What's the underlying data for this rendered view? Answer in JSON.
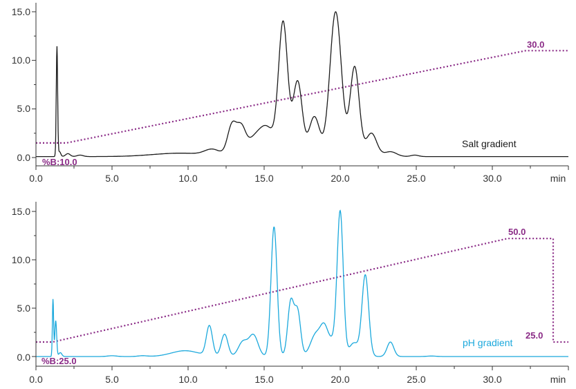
{
  "colors": {
    "salt_trace": "#1a1a1a",
    "ph_trace": "#1aa8dc",
    "gradient": "#8a2a86",
    "axis": "#333333"
  },
  "chart_data": [
    {
      "type": "line",
      "x_ticks": [
        "0.0",
        "5.0",
        "10.0",
        "15.0",
        "20.0",
        "25.0",
        "30.0"
      ],
      "x_unit_label": "min",
      "y_ticks": [
        "0.0",
        "5.0",
        "10.0",
        "15.0"
      ],
      "xlim": [
        0,
        35
      ],
      "ylim": [
        -0.3,
        15.8
      ],
      "trace_label": "Salt gradient",
      "gradient_start_label": "%B:10.0",
      "gradient_end_label": "30.0",
      "trace": {
        "baseline": 0.1,
        "peaks": [
          [
            1.38,
            11.3,
            0.045
          ],
          [
            1.55,
            0.5,
            0.08
          ],
          [
            2.1,
            0.3,
            0.15
          ],
          [
            2.9,
            0.15,
            0.2
          ],
          [
            9.5,
            0.35,
            1.8
          ],
          [
            11.6,
            0.6,
            0.5
          ],
          [
            12.9,
            3.2,
            0.3
          ],
          [
            13.5,
            2.5,
            0.28
          ],
          [
            14.3,
            1.6,
            0.5
          ],
          [
            15.2,
            2.8,
            0.5
          ],
          [
            16.25,
            13.6,
            0.3
          ],
          [
            17.2,
            7.7,
            0.3
          ],
          [
            18.3,
            4.1,
            0.35
          ],
          [
            19.7,
            14.9,
            0.38
          ],
          [
            20.95,
            9.2,
            0.3
          ],
          [
            22.05,
            2.4,
            0.35
          ],
          [
            23.3,
            0.5,
            0.4
          ],
          [
            24.9,
            0.15,
            0.25
          ]
        ]
      },
      "gradient_profile": [
        [
          0,
          1.5
        ],
        [
          2,
          1.5
        ],
        [
          32.2,
          11.0
        ],
        [
          35,
          11.0
        ]
      ]
    },
    {
      "type": "line",
      "x_ticks": [
        "0.0",
        "5.0",
        "10.0",
        "15.0",
        "20.0",
        "25.0",
        "30.0"
      ],
      "x_unit_label": "min",
      "y_ticks": [
        "0.0",
        "5.0",
        "10.0",
        "15.0"
      ],
      "xlim": [
        0,
        35
      ],
      "ylim": [
        -0.3,
        15.8
      ],
      "trace_label": "pH gradient",
      "gradient_start_label": "%B:25.0",
      "gradient_mid_label": "50.0",
      "gradient_end_label": "25.0",
      "trace": {
        "baseline": 0.0,
        "peaks": [
          [
            1.12,
            5.9,
            0.04
          ],
          [
            1.3,
            3.7,
            0.06
          ],
          [
            1.6,
            0.4,
            0.1
          ],
          [
            5.0,
            0.08,
            0.3
          ],
          [
            7.0,
            0.08,
            0.3
          ],
          [
            9.8,
            0.6,
            0.9
          ],
          [
            11.4,
            3.1,
            0.2
          ],
          [
            12.4,
            2.3,
            0.22
          ],
          [
            13.6,
            1.5,
            0.3
          ],
          [
            14.3,
            2.2,
            0.3
          ],
          [
            15.65,
            13.4,
            0.2
          ],
          [
            16.75,
            5.6,
            0.2
          ],
          [
            17.2,
            4.6,
            0.2
          ],
          [
            18.4,
            2.3,
            0.35
          ],
          [
            18.95,
            2.5,
            0.25
          ],
          [
            19.5,
            1.5,
            0.3
          ],
          [
            20.0,
            14.7,
            0.2
          ],
          [
            20.9,
            1.4,
            0.3
          ],
          [
            21.65,
            8.4,
            0.22
          ],
          [
            23.3,
            1.5,
            0.22
          ],
          [
            26.0,
            0.05,
            0.3
          ]
        ]
      },
      "gradient_profile": [
        [
          0,
          1.5
        ],
        [
          1.1,
          1.5
        ],
        [
          31.0,
          12.2
        ],
        [
          32.6,
          12.2
        ],
        [
          34.0,
          12.2
        ],
        [
          34.0,
          1.5
        ],
        [
          35,
          1.5
        ]
      ]
    }
  ]
}
